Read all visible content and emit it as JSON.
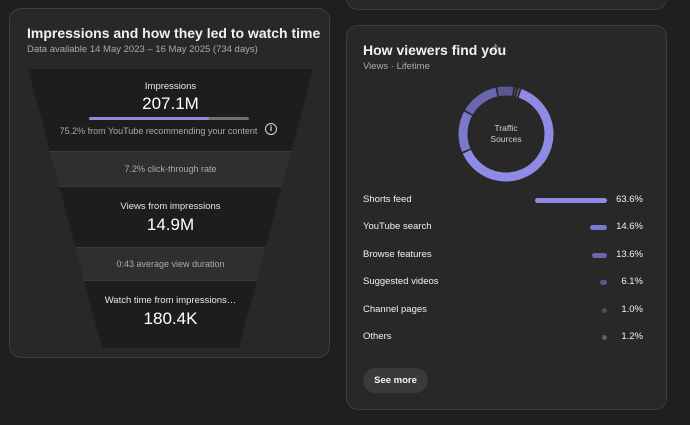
{
  "funnel": {
    "title": "Impressions and how they led to watch time",
    "subtitle": "Data available 14 May 2023 – 16 May 2025 (734 days)",
    "impressions": {
      "label": "Impressions",
      "value": "207.1M",
      "note": "75.2% from YouTube recommending your content",
      "bar_fraction": 0.752,
      "info_icon": "i"
    },
    "ctr_note": "7.2% click-through rate",
    "views": {
      "label": "Views from impressions",
      "value": "14.9M"
    },
    "duration_note": "0:43 average view duration",
    "watch_time": {
      "label": "Watch time from impressions…",
      "value": "180.4K"
    }
  },
  "viewers": {
    "title": "How viewers find you",
    "warning_icon": "⚠",
    "subtitle": "Views · Lifetime",
    "donut_label_line1": "Traffic",
    "donut_label_line2": "Sources",
    "sources": [
      {
        "label": "Shorts feed",
        "percent": "63.6%",
        "value": 63.6,
        "color": "#8f8ae6"
      },
      {
        "label": "YouTube search",
        "percent": "14.6%",
        "value": 14.6,
        "color": "#7c78cc"
      },
      {
        "label": "Browse features",
        "percent": "13.6%",
        "value": 13.6,
        "color": "#6a67ae"
      },
      {
        "label": "Suggested videos",
        "percent": "6.1%",
        "value": 6.1,
        "color": "#5b5890"
      },
      {
        "label": "Channel pages",
        "percent": "1.0%",
        "value": 1.0,
        "color": "#4b4a6a"
      },
      {
        "label": "Others",
        "percent": "1.2%",
        "value": 1.2,
        "color": "#5f5f5f"
      }
    ],
    "see_more_label": "See more"
  }
}
